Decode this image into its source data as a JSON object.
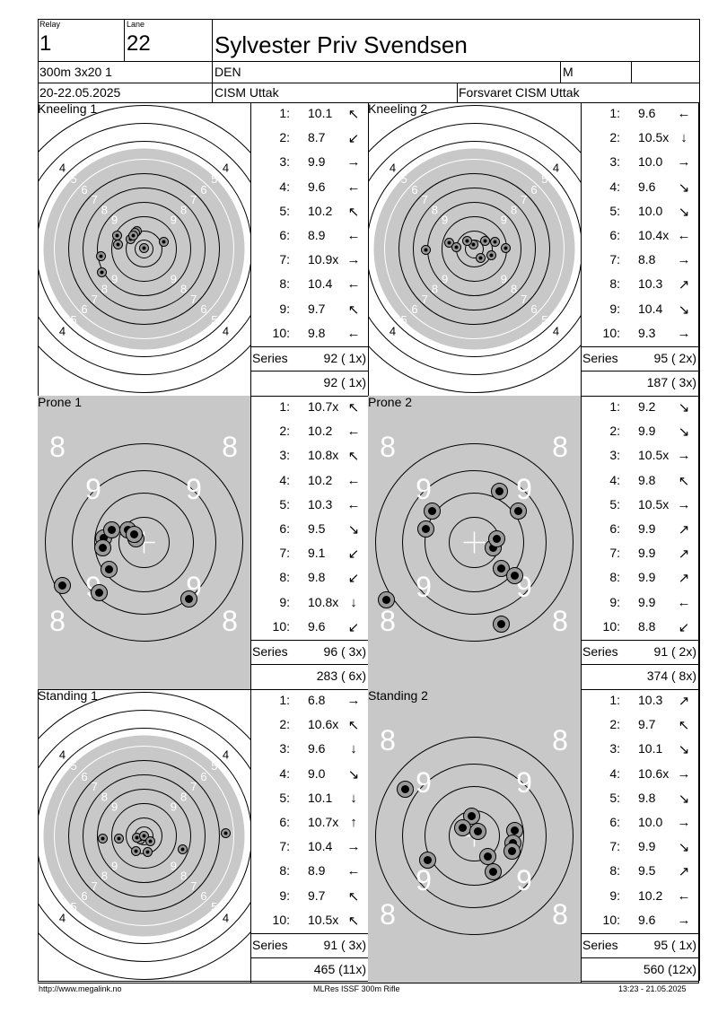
{
  "header": {
    "relay_label": "Relay",
    "relay": "1",
    "lane_label": "Lane",
    "lane": "22",
    "name": "Sylvester Priv Svendsen",
    "event": "300m 3x20 1",
    "nation": "DEN",
    "gender": "M",
    "dates": "20-22.05.2025",
    "competition": "CISM Uttak",
    "organizer": "Forsvaret CISM Uttak"
  },
  "labels": {
    "series": "Series"
  },
  "panels": [
    {
      "title": "Kneeling 1",
      "target_type": "kneeling-standing",
      "shots": [
        {
          "n": "1:",
          "v": "10.1",
          "a": "↖"
        },
        {
          "n": "2:",
          "v": "8.7",
          "a": "↙"
        },
        {
          "n": "3:",
          "v": "9.9",
          "a": "→"
        },
        {
          "n": "4:",
          "v": "9.6",
          "a": "←"
        },
        {
          "n": "5:",
          "v": "10.2",
          "a": "↖"
        },
        {
          "n": "6:",
          "v": "8.9",
          "a": "←"
        },
        {
          "n": "7:",
          "v": "10.9x",
          "a": "→"
        },
        {
          "n": "8:",
          "v": "10.4",
          "a": "←"
        },
        {
          "n": "9:",
          "v": "9.7",
          "a": "↖"
        },
        {
          "n": "10:",
          "v": "9.8",
          "a": "←"
        }
      ],
      "series_total": "92 ( 1x)",
      "running_total": "92 ( 1x)"
    },
    {
      "title": "Kneeling 2",
      "target_type": "kneeling-standing",
      "shots": [
        {
          "n": "1:",
          "v": "9.6",
          "a": "←"
        },
        {
          "n": "2:",
          "v": "10.5x",
          "a": "↓"
        },
        {
          "n": "3:",
          "v": "10.0",
          "a": "→"
        },
        {
          "n": "4:",
          "v": "9.6",
          "a": "↘"
        },
        {
          "n": "5:",
          "v": "10.0",
          "a": "↘"
        },
        {
          "n": "6:",
          "v": "10.4x",
          "a": "←"
        },
        {
          "n": "7:",
          "v": "8.8",
          "a": "→"
        },
        {
          "n": "8:",
          "v": "10.3",
          "a": "↗"
        },
        {
          "n": "9:",
          "v": "10.4",
          "a": "↘"
        },
        {
          "n": "10:",
          "v": "9.3",
          "a": "→"
        }
      ],
      "series_total": "95 ( 2x)",
      "running_total": "187 ( 3x)"
    },
    {
      "title": "Prone 1",
      "target_type": "prone",
      "shots": [
        {
          "n": "1:",
          "v": "10.7x",
          "a": "↖"
        },
        {
          "n": "2:",
          "v": "10.2",
          "a": "←"
        },
        {
          "n": "3:",
          "v": "10.8x",
          "a": "↖"
        },
        {
          "n": "4:",
          "v": "10.2",
          "a": "←"
        },
        {
          "n": "5:",
          "v": "10.3",
          "a": "←"
        },
        {
          "n": "6:",
          "v": "9.5",
          "a": "↘"
        },
        {
          "n": "7:",
          "v": "9.1",
          "a": "↙"
        },
        {
          "n": "8:",
          "v": "9.8",
          "a": "↙"
        },
        {
          "n": "9:",
          "v": "10.8x",
          "a": "↓"
        },
        {
          "n": "10:",
          "v": "9.6",
          "a": "↙"
        }
      ],
      "series_total": "96 ( 3x)",
      "running_total": "283 ( 6x)"
    },
    {
      "title": "Prone 2",
      "target_type": "prone",
      "shots": [
        {
          "n": "1:",
          "v": "9.2",
          "a": "↘"
        },
        {
          "n": "2:",
          "v": "9.9",
          "a": "↘"
        },
        {
          "n": "3:",
          "v": "10.5x",
          "a": "→"
        },
        {
          "n": "4:",
          "v": "9.8",
          "a": "↖"
        },
        {
          "n": "5:",
          "v": "10.5x",
          "a": "→"
        },
        {
          "n": "6:",
          "v": "9.9",
          "a": "↗"
        },
        {
          "n": "7:",
          "v": "9.9",
          "a": "↗"
        },
        {
          "n": "8:",
          "v": "9.9",
          "a": "↗"
        },
        {
          "n": "9:",
          "v": "9.9",
          "a": "←"
        },
        {
          "n": "10:",
          "v": "8.8",
          "a": "↙"
        }
      ],
      "series_total": "91 ( 2x)",
      "running_total": "374 ( 8x)"
    },
    {
      "title": "Standing 1",
      "target_type": "kneeling-standing",
      "shots": [
        {
          "n": "1:",
          "v": "6.8",
          "a": "→"
        },
        {
          "n": "2:",
          "v": "10.6x",
          "a": "↖"
        },
        {
          "n": "3:",
          "v": "9.6",
          "a": "↓"
        },
        {
          "n": "4:",
          "v": "9.0",
          "a": "↘"
        },
        {
          "n": "5:",
          "v": "10.1",
          "a": "↓"
        },
        {
          "n": "6:",
          "v": "10.7x",
          "a": "↑"
        },
        {
          "n": "7:",
          "v": "10.4",
          "a": "→"
        },
        {
          "n": "8:",
          "v": "8.9",
          "a": "←"
        },
        {
          "n": "9:",
          "v": "9.7",
          "a": "↖"
        },
        {
          "n": "10:",
          "v": "10.5x",
          "a": "↖"
        }
      ],
      "series_total": "91 ( 3x)",
      "running_total": "465 (11x)"
    },
    {
      "title": "Standing 2",
      "target_type": "prone",
      "shots": [
        {
          "n": "1:",
          "v": "10.3",
          "a": "↗"
        },
        {
          "n": "2:",
          "v": "9.7",
          "a": "↖"
        },
        {
          "n": "3:",
          "v": "10.1",
          "a": "↘"
        },
        {
          "n": "4:",
          "v": "10.6x",
          "a": "→"
        },
        {
          "n": "5:",
          "v": "9.8",
          "a": "↘"
        },
        {
          "n": "6:",
          "v": "10.0",
          "a": "→"
        },
        {
          "n": "7:",
          "v": "9.9",
          "a": "↘"
        },
        {
          "n": "8:",
          "v": "9.5",
          "a": "↗"
        },
        {
          "n": "9:",
          "v": "10.2",
          "a": "←"
        },
        {
          "n": "10:",
          "v": "9.6",
          "a": "→"
        }
      ],
      "series_total": "95 ( 1x)",
      "running_total": "560 (12x)"
    }
  ],
  "footer": {
    "left": "http://www.megalink.no",
    "center": "MLRes ISSF 300m Rifle",
    "right": "13:23 - 21.05.2025"
  }
}
